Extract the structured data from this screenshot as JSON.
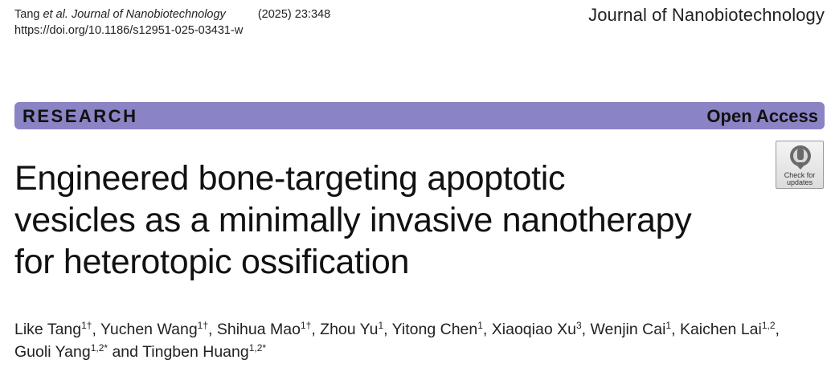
{
  "header": {
    "citation_authors": "Tang",
    "citation_etal_journal": "et al. Journal of Nanobiotechnology",
    "citation_year_vol": "(2025) 23:348",
    "doi": "https://doi.org/10.1186/s12951-025-03431-w",
    "journal_name": "Journal of Nanobiotechnology"
  },
  "banner": {
    "label": "RESEARCH",
    "access": "Open Access",
    "color": "#8a83c4"
  },
  "badge": {
    "line1": "Check for",
    "line2": "updates",
    "icon": "check-for-updates-icon"
  },
  "title": {
    "line1": "Engineered bone-targeting apoptotic",
    "line2": "vesicles as a minimally invasive nanotherapy",
    "line3": "for heterotopic ossification"
  },
  "authors": [
    {
      "name": "Like Tang",
      "sup": "1†",
      "sep": ", "
    },
    {
      "name": "Yuchen Wang",
      "sup": "1†",
      "sep": ", "
    },
    {
      "name": "Shihua Mao",
      "sup": "1†",
      "sep": ", "
    },
    {
      "name": "Zhou Yu",
      "sup": "1",
      "sep": ", "
    },
    {
      "name": "Yitong Chen",
      "sup": "1",
      "sep": ", "
    },
    {
      "name": "Xiaoqiao Xu",
      "sup": "3",
      "sep": ", "
    },
    {
      "name": "Wenjin Cai",
      "sup": "1",
      "sep": ", "
    },
    {
      "name": "Kaichen Lai",
      "sup": "1,2",
      "sep": ", "
    },
    {
      "name": "Guoli Yang",
      "sup": "1,2*",
      "sep": " and "
    },
    {
      "name": "Tingben Huang",
      "sup": "1,2*",
      "sep": ""
    }
  ]
}
